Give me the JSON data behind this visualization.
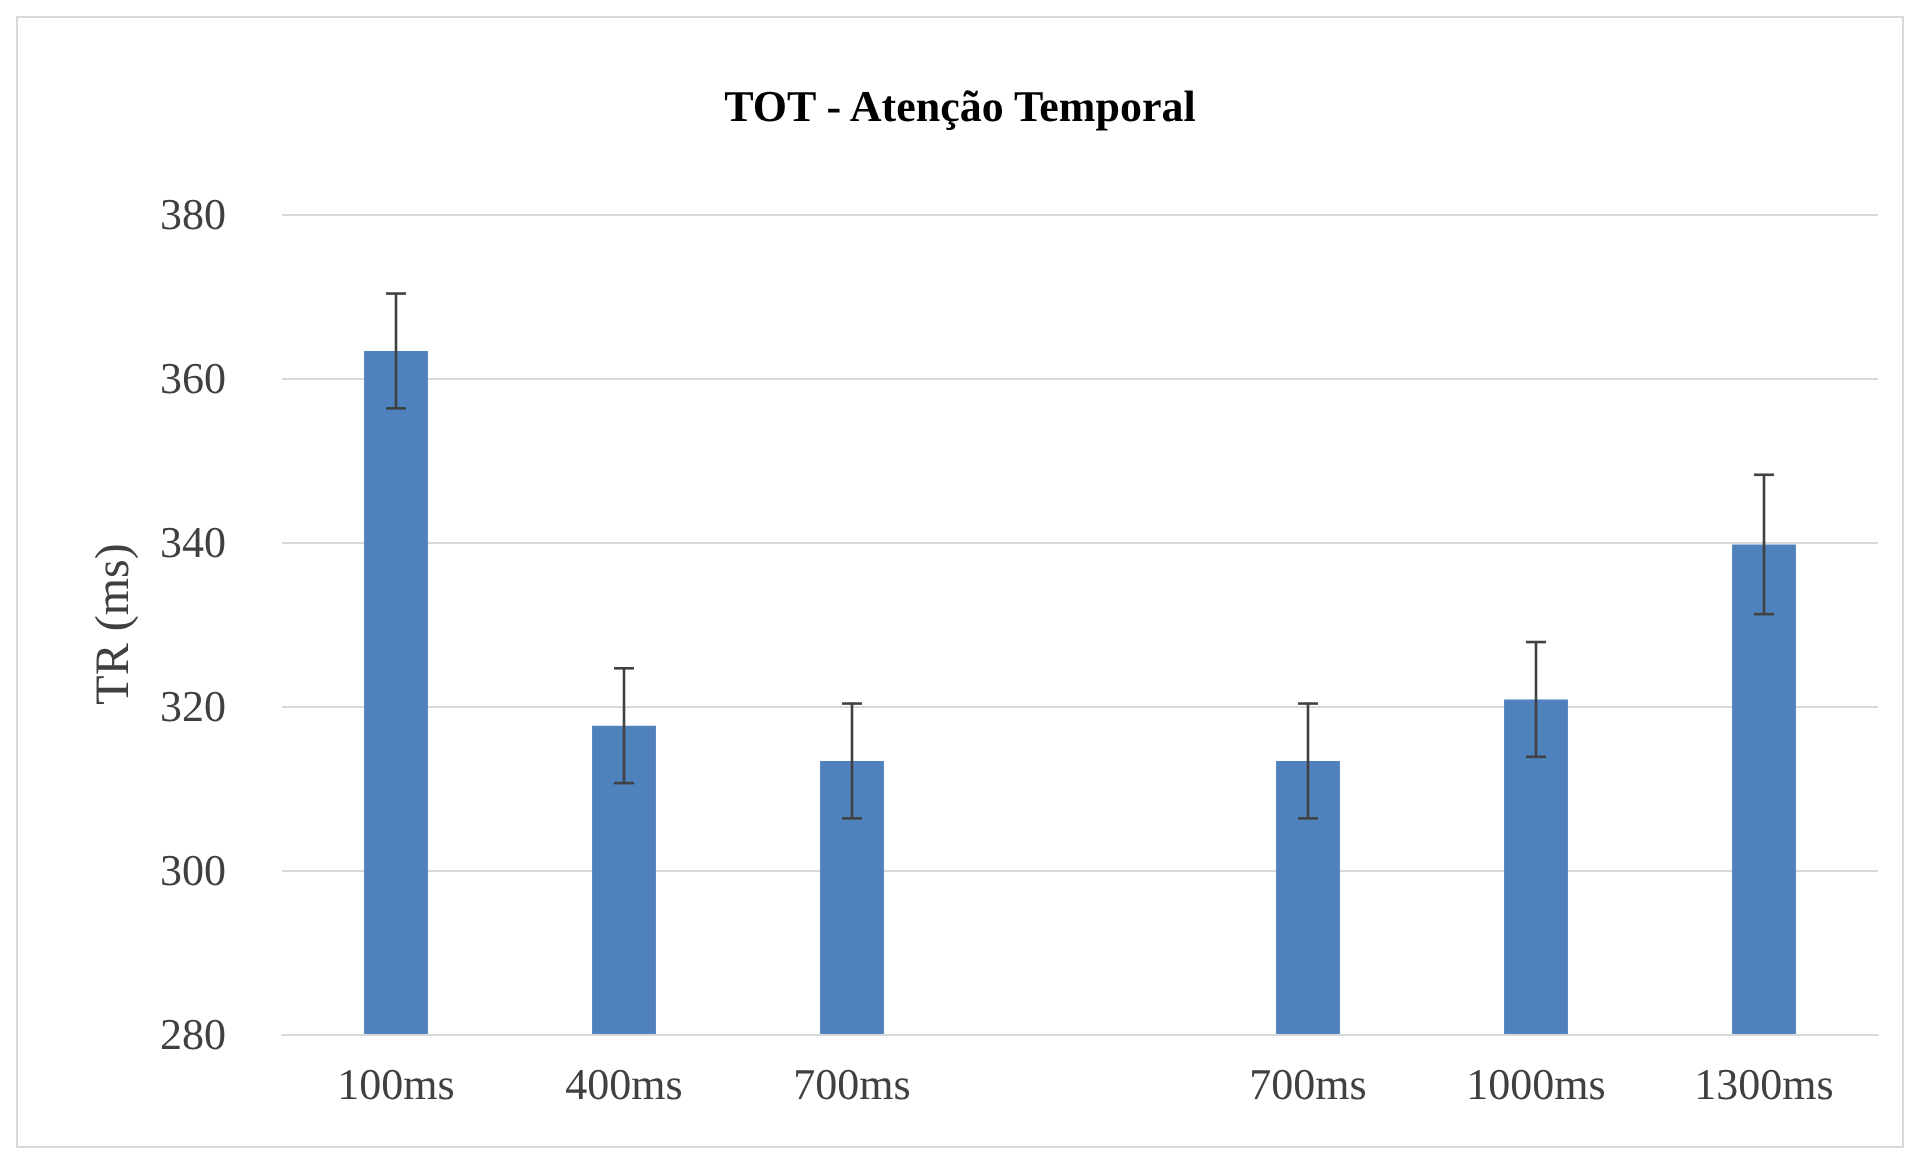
{
  "chart_data": {
    "type": "bar",
    "title": "TOT - Atenção Temporal",
    "ylabel": "TR (ms)",
    "categories": [
      "100ms",
      "400ms",
      "700ms",
      null,
      "700ms",
      "1000ms",
      "1300ms"
    ],
    "values": [
      363.3,
      317.6,
      313.3,
      null,
      313.3,
      320.8,
      339.7
    ],
    "errors": [
      7,
      7,
      7,
      null,
      7,
      7,
      8.5
    ],
    "color": "#4f81bd",
    "ylim": [
      280,
      380
    ],
    "yticks": [
      280,
      300,
      320,
      340,
      360,
      380
    ],
    "grid": "y"
  }
}
